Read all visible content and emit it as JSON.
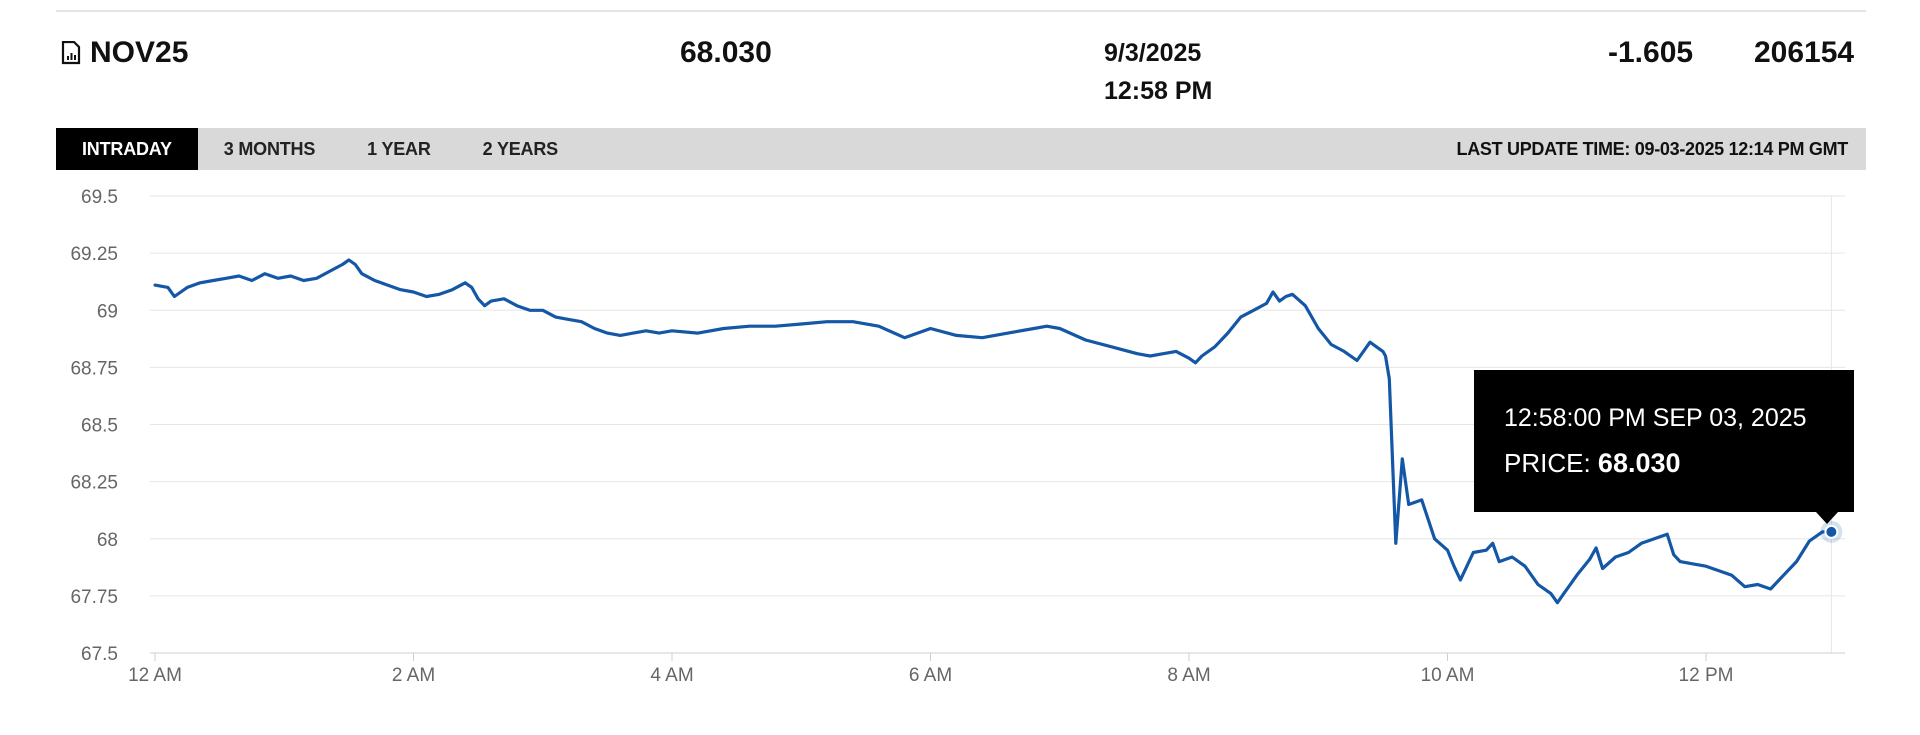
{
  "summary": {
    "symbol": "NOV25",
    "price": "68.030",
    "date": "9/3/2025",
    "time": "12:58 PM",
    "change": "-1.605",
    "volume": "206154"
  },
  "tabs": [
    {
      "label": "INTRADAY",
      "active": true
    },
    {
      "label": "3 MONTHS",
      "active": false
    },
    {
      "label": "1 YEAR",
      "active": false
    },
    {
      "label": "2 YEARS",
      "active": false
    }
  ],
  "last_update": "LAST UPDATE TIME: 09-03-2025 12:14 PM GMT",
  "tooltip": {
    "timestamp": "12:58:00 PM SEP 03, 2025",
    "price_label": "PRICE:",
    "price_value": "68.030"
  },
  "colors": {
    "line": "#1357a6",
    "grid": "#e6e6e6",
    "tab_active_bg": "#000000",
    "tabbar_bg": "#d9d9d9",
    "tooltip_bg": "#000000"
  },
  "chart_data": {
    "type": "line",
    "title": "",
    "xlabel": "",
    "ylabel": "",
    "ylim": [
      67.5,
      69.5
    ],
    "xlim_hours": [
      0,
      13.0
    ],
    "y_ticks": [
      "69.5",
      "69.25",
      "69",
      "68.75",
      "68.5",
      "68.25",
      "68",
      "67.75",
      "67.5"
    ],
    "x_ticks": [
      {
        "label": "12 AM",
        "hour": 0
      },
      {
        "label": "2 AM",
        "hour": 2
      },
      {
        "label": "4 AM",
        "hour": 4
      },
      {
        "label": "6 AM",
        "hour": 6
      },
      {
        "label": "8 AM",
        "hour": 8
      },
      {
        "label": "10 AM",
        "hour": 10
      },
      {
        "label": "12 PM",
        "hour": 12
      }
    ],
    "grid": true,
    "series": [
      {
        "x": [
          0,
          0.1,
          0.15,
          0.2,
          0.25,
          0.35,
          0.45,
          0.55,
          0.65,
          0.75,
          0.85,
          0.95,
          1.05,
          1.15,
          1.25,
          1.35,
          1.45,
          1.5,
          1.55,
          1.6,
          1.7,
          1.8,
          1.9,
          2.0,
          2.1,
          2.2,
          2.3,
          2.4,
          2.45,
          2.5,
          2.55,
          2.6,
          2.7,
          2.8,
          2.9,
          3.0,
          3.1,
          3.2,
          3.3,
          3.4,
          3.5,
          3.6,
          3.7,
          3.8,
          3.9,
          4.0,
          4.2,
          4.4,
          4.6,
          4.8,
          5.0,
          5.2,
          5.4,
          5.6,
          5.8,
          6.0,
          6.2,
          6.4,
          6.6,
          6.8,
          6.9,
          7.0,
          7.2,
          7.4,
          7.6,
          7.7,
          7.8,
          7.9,
          8.0,
          8.05,
          8.1,
          8.2,
          8.3,
          8.4,
          8.5,
          8.6,
          8.65,
          8.7,
          8.75,
          8.8,
          8.9,
          9.0,
          9.1,
          9.2,
          9.3,
          9.4,
          9.45,
          9.5,
          9.52,
          9.55,
          9.6,
          9.65,
          9.7,
          9.8,
          9.9,
          10.0,
          10.05,
          10.1,
          10.2,
          10.3,
          10.35,
          10.4,
          10.5,
          10.6,
          10.7,
          10.8,
          10.85,
          10.9,
          10.95,
          11.0,
          11.1,
          11.15,
          11.2,
          11.3,
          11.4,
          11.5,
          11.6,
          11.7,
          11.75,
          11.8,
          11.9,
          12.0,
          12.1,
          12.2,
          12.3,
          12.4,
          12.5,
          12.6,
          12.7,
          12.8,
          12.9,
          12.97
        ],
        "y": [
          69.11,
          69.1,
          69.06,
          69.08,
          69.1,
          69.12,
          69.13,
          69.14,
          69.15,
          69.13,
          69.16,
          69.14,
          69.15,
          69.13,
          69.14,
          69.17,
          69.2,
          69.22,
          69.2,
          69.16,
          69.13,
          69.11,
          69.09,
          69.08,
          69.06,
          69.07,
          69.09,
          69.12,
          69.1,
          69.05,
          69.02,
          69.04,
          69.05,
          69.02,
          69.0,
          69.0,
          68.97,
          68.96,
          68.95,
          68.92,
          68.9,
          68.89,
          68.9,
          68.91,
          68.9,
          68.91,
          68.9,
          68.92,
          68.93,
          68.93,
          68.94,
          68.95,
          68.95,
          68.93,
          68.88,
          68.92,
          68.89,
          68.88,
          68.9,
          68.92,
          68.93,
          68.92,
          68.87,
          68.84,
          68.81,
          68.8,
          68.81,
          68.82,
          68.79,
          68.77,
          68.8,
          68.84,
          68.9,
          68.97,
          69.0,
          69.03,
          69.08,
          69.04,
          69.06,
          69.07,
          69.02,
          68.92,
          68.85,
          68.82,
          68.78,
          68.86,
          68.84,
          68.82,
          68.8,
          68.7,
          67.98,
          68.35,
          68.15,
          68.17,
          68.0,
          67.95,
          67.88,
          67.82,
          67.94,
          67.95,
          67.98,
          67.9,
          67.92,
          67.88,
          67.8,
          67.76,
          67.72,
          67.76,
          67.8,
          67.84,
          67.91,
          67.96,
          67.87,
          67.92,
          67.94,
          67.98,
          68.0,
          68.02,
          67.93,
          67.9,
          67.89,
          67.88,
          67.86,
          67.84,
          67.79,
          67.8,
          67.78,
          67.84,
          67.9,
          67.99,
          68.03,
          68.03
        ]
      }
    ],
    "highlight": {
      "hour": 12.97,
      "price": 68.03
    }
  }
}
